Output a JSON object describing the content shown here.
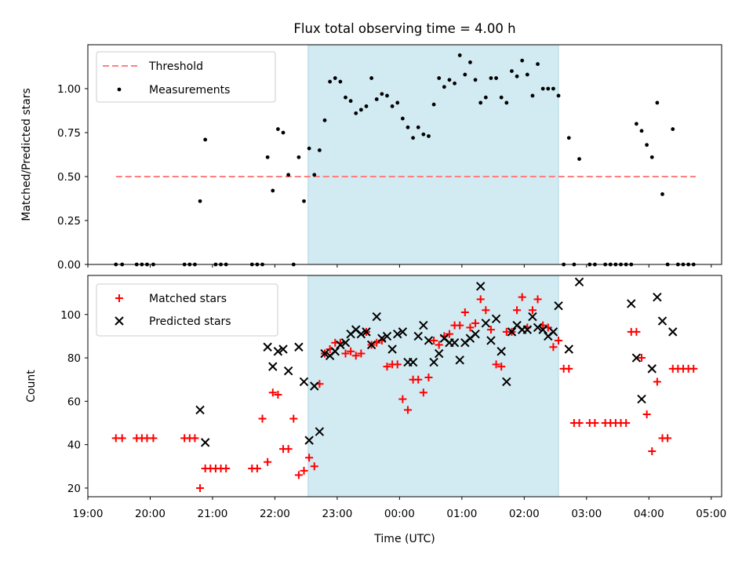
{
  "title": "Flux total observing time = 4.00 h",
  "colors": {
    "threshold": "#ff7f7f",
    "measurement": "#000000",
    "matched": "#ff0000",
    "predicted": "#000000",
    "shade": "#add8e6"
  },
  "chart_data": [
    {
      "type": "scatter",
      "ylabel": "Matched/Predicted stars",
      "xlabel": "",
      "xlim": [
        "19:00",
        "05:10"
      ],
      "ylim": [
        0,
        1.25
      ],
      "yticks": [
        0.0,
        0.25,
        0.5,
        0.75,
        1.0
      ],
      "ytick_labels": [
        "0.00",
        "0.25",
        "0.50",
        "0.75",
        "1.00"
      ],
      "shaded_region": [
        "22:32",
        "02:33"
      ],
      "legend": "upper left",
      "threshold": {
        "name": "Threshold",
        "y": 0.5,
        "x_range": [
          "19:27",
          "04:45"
        ]
      },
      "series": [
        {
          "name": "Measurements",
          "x": [
            "19:27",
            "19:33",
            "19:47",
            "19:52",
            "19:57",
            "20:03",
            "20:33",
            "20:38",
            "20:43",
            "20:48",
            "20:53",
            "21:03",
            "21:08",
            "21:13",
            "21:38",
            "21:43",
            "21:48",
            "21:53",
            "21:58",
            "22:03",
            "22:08",
            "22:13",
            "22:18",
            "22:23",
            "22:28",
            "22:33",
            "22:38",
            "22:43",
            "22:48",
            "22:53",
            "22:58",
            "23:03",
            "23:08",
            "23:13",
            "23:18",
            "23:23",
            "23:28",
            "23:33",
            "23:38",
            "23:43",
            "23:48",
            "23:53",
            "23:58",
            "00:03",
            "00:08",
            "00:13",
            "00:18",
            "00:23",
            "00:28",
            "00:33",
            "00:38",
            "00:43",
            "00:48",
            "00:53",
            "00:58",
            "01:03",
            "01:08",
            "01:13",
            "01:18",
            "01:23",
            "01:28",
            "01:33",
            "01:38",
            "01:43",
            "01:48",
            "01:53",
            "01:58",
            "02:03",
            "02:08",
            "02:13",
            "02:18",
            "02:23",
            "02:28",
            "02:33",
            "02:38",
            "02:43",
            "02:48",
            "02:53",
            "03:03",
            "03:08",
            "03:18",
            "03:23",
            "03:28",
            "03:33",
            "03:38",
            "03:43",
            "03:48",
            "03:53",
            "03:58",
            "04:03",
            "04:08",
            "04:13",
            "04:18",
            "04:23",
            "04:28",
            "04:33",
            "04:38",
            "04:43"
          ],
          "y": [
            0,
            0,
            0,
            0,
            0,
            0,
            0,
            0,
            0,
            0.36,
            0.71,
            0,
            0,
            0,
            0,
            0,
            0,
            0.61,
            0.42,
            0.77,
            0.75,
            0.51,
            0,
            0.61,
            0.36,
            0.66,
            0.51,
            0.65,
            0.82,
            1.04,
            1.06,
            1.04,
            0.95,
            0.93,
            0.86,
            0.88,
            0.9,
            1.06,
            0.94,
            0.97,
            0.96,
            0.9,
            0.92,
            0.83,
            0.78,
            0.72,
            0.78,
            0.74,
            0.73,
            0.91,
            1.06,
            1.01,
            1.05,
            1.03,
            1.19,
            1.08,
            1.15,
            1.05,
            0.92,
            0.95,
            1.06,
            1.06,
            0.95,
            0.92,
            1.1,
            1.07,
            1.16,
            1.08,
            0.96,
            1.14,
            1.0,
            1.0,
            1.0,
            0.96,
            0,
            0.72,
            0,
            0.6,
            0,
            0,
            0,
            0,
            0,
            0,
            0,
            0,
            0.8,
            0.76,
            0.68,
            0.61,
            0.92,
            0.4,
            0,
            0.77,
            0,
            0,
            0,
            0
          ]
        }
      ]
    },
    {
      "type": "scatter",
      "ylabel": "Count",
      "xlabel": "Time (UTC)",
      "xlim": [
        "19:00",
        "05:10"
      ],
      "ylim": [
        16,
        118
      ],
      "yticks": [
        20,
        40,
        60,
        80,
        100
      ],
      "ytick_labels": [
        "20",
        "40",
        "60",
        "80",
        "100"
      ],
      "xtick_labels": [
        "19:00",
        "20:00",
        "21:00",
        "22:00",
        "23:00",
        "00:00",
        "01:00",
        "02:00",
        "03:00",
        "04:00",
        "05:00"
      ],
      "shaded_region": [
        "22:32",
        "02:33"
      ],
      "legend": "upper left",
      "series": [
        {
          "name": "Matched stars",
          "x": [
            "19:27",
            "19:33",
            "19:47",
            "19:52",
            "19:57",
            "20:03",
            "20:33",
            "20:38",
            "20:43",
            "20:48",
            "20:53",
            "20:58",
            "21:03",
            "21:08",
            "21:13",
            "21:38",
            "21:43",
            "21:48",
            "21:53",
            "21:58",
            "22:03",
            "22:08",
            "22:13",
            "22:18",
            "22:23",
            "22:28",
            "22:33",
            "22:38",
            "22:43",
            "22:48",
            "22:53",
            "22:58",
            "23:03",
            "23:08",
            "23:13",
            "23:18",
            "23:23",
            "23:28",
            "23:33",
            "23:38",
            "23:43",
            "23:48",
            "23:53",
            "23:58",
            "00:03",
            "00:08",
            "00:13",
            "00:18",
            "00:23",
            "00:28",
            "00:33",
            "00:38",
            "00:43",
            "00:48",
            "00:53",
            "00:58",
            "01:03",
            "01:08",
            "01:13",
            "01:18",
            "01:23",
            "01:28",
            "01:33",
            "01:38",
            "01:43",
            "01:48",
            "01:53",
            "01:58",
            "02:03",
            "02:08",
            "02:13",
            "02:18",
            "02:23",
            "02:28",
            "02:33",
            "02:38",
            "02:43",
            "02:48",
            "02:53",
            "03:03",
            "03:08",
            "03:18",
            "03:23",
            "03:28",
            "03:33",
            "03:38",
            "03:43",
            "03:48",
            "03:53",
            "03:58",
            "04:03",
            "04:08",
            "04:13",
            "04:18",
            "04:23",
            "04:28",
            "04:33",
            "04:38",
            "04:43"
          ],
          "y": [
            43,
            43,
            43,
            43,
            43,
            43,
            43,
            43,
            43,
            20,
            29,
            29,
            29,
            29,
            29,
            29,
            29,
            52,
            32,
            64,
            63,
            38,
            38,
            52,
            26,
            28,
            34,
            30,
            68,
            82,
            84,
            87,
            87,
            82,
            83,
            81,
            82,
            92,
            86,
            87,
            88,
            76,
            77,
            77,
            61,
            56,
            70,
            70,
            64,
            71,
            88,
            86,
            90,
            91,
            95,
            95,
            101,
            94,
            96,
            107,
            102,
            93,
            77,
            76,
            92,
            92,
            102,
            108,
            94,
            102,
            107,
            95,
            94,
            85,
            88,
            75,
            75,
            50,
            50,
            50,
            50,
            50,
            50,
            50,
            50,
            50,
            92,
            92,
            80,
            54,
            37,
            69,
            43,
            43,
            75,
            75,
            75,
            75,
            75
          ]
        },
        {
          "name": "Predicted stars",
          "x": [
            "20:48",
            "20:53",
            "21:53",
            "21:58",
            "22:03",
            "22:08",
            "22:13",
            "22:23",
            "22:28",
            "22:33",
            "22:38",
            "22:43",
            "22:48",
            "22:53",
            "22:58",
            "23:03",
            "23:08",
            "23:13",
            "23:18",
            "23:23",
            "23:28",
            "23:33",
            "23:38",
            "23:43",
            "23:48",
            "23:53",
            "23:58",
            "00:03",
            "00:08",
            "00:13",
            "00:18",
            "00:23",
            "00:28",
            "00:33",
            "00:38",
            "00:43",
            "00:48",
            "00:53",
            "00:58",
            "01:03",
            "01:08",
            "01:13",
            "01:18",
            "01:23",
            "01:28",
            "01:33",
            "01:38",
            "01:43",
            "01:48",
            "01:53",
            "01:58",
            "02:03",
            "02:08",
            "02:13",
            "02:18",
            "02:23",
            "02:28",
            "02:33",
            "02:43",
            "02:53",
            "03:43",
            "03:48",
            "03:53",
            "04:03",
            "04:08",
            "04:13",
            "04:23"
          ],
          "y": [
            56,
            41,
            85,
            76,
            83,
            84,
            74,
            85,
            69,
            42,
            67,
            46,
            82,
            81,
            83,
            86,
            87,
            91,
            93,
            91,
            92,
            86,
            99,
            89,
            90,
            84,
            91,
            92,
            78,
            78,
            90,
            95,
            88,
            78,
            82,
            89,
            87,
            87,
            79,
            87,
            89,
            91,
            113,
            96,
            88,
            98,
            83,
            69,
            92,
            95,
            93,
            93,
            99,
            94,
            93,
            90,
            92,
            104,
            84,
            115,
            105,
            80,
            61,
            75,
            108,
            97,
            92
          ]
        }
      ]
    }
  ]
}
